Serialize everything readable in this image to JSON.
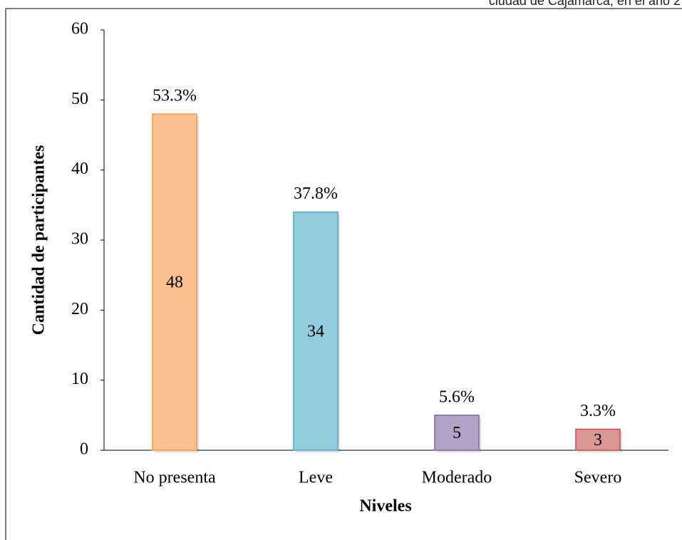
{
  "note": "ciudad de Cajamarca, en el año 2",
  "chart_data": {
    "type": "bar",
    "x_label": "Niveles",
    "y_label": "Cantidad de participantes",
    "categories": [
      "No presenta",
      "Leve",
      "Moderado",
      "Severo"
    ],
    "values": [
      48,
      34,
      5,
      3
    ],
    "percent_labels": [
      "53.3%",
      "37.8%",
      "5.6%",
      "3.3%"
    ],
    "colors": [
      "#fac090",
      "#93cddd",
      "#b3a2c7",
      "#d99694"
    ],
    "border_colors": [
      "#f79646",
      "#4bacc6",
      "#8064a2",
      "#c0504d"
    ],
    "ylim": [
      0,
      60
    ],
    "yticks": [
      0,
      10,
      20,
      30,
      40,
      50,
      60
    ],
    "grid": false
  }
}
